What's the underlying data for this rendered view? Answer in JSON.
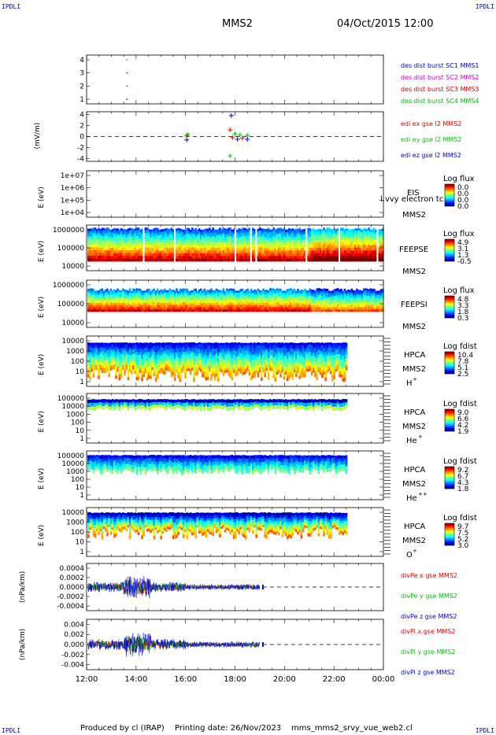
{
  "header": {
    "corner_tl": "IPDLI",
    "corner_tr": "IPDLI",
    "corner_bl": "IPDLI",
    "corner_br": "IPDLI",
    "mission": "MMS2",
    "date": "04/Oct/2015 12:00"
  },
  "footer": {
    "produced_by": "Produced by cl (IRAP)",
    "printing_date": "Printing date: 26/Nov/2023",
    "filename": "mms_mms2_srvy_vue_web2.cl"
  },
  "colors": {
    "mms1": "#0000c8",
    "mms2": "#c800c8",
    "mms3": "#c80000",
    "mms4": "#00b400",
    "x_red": "#e00000",
    "y_green": "#00c000",
    "z_blue": "#0000d0"
  },
  "chart_data": [
    {
      "type": "scatter",
      "title": "",
      "ylabel": "",
      "yticks": [
        "4",
        "3",
        "2",
        "1"
      ],
      "series": [
        {
          "name": "des dist burst SC1 MMS1",
          "x": [
            13.6
          ],
          "y": [
            1
          ]
        },
        {
          "name": "des dist burst SC2 MMS2",
          "x": [
            13.6
          ],
          "y": [
            2
          ]
        },
        {
          "name": "des dist burst SC3 MMS3",
          "x": [
            13.6
          ],
          "y": [
            3
          ]
        },
        {
          "name": "des dist burst SC4 MMS4",
          "x": [
            13.6
          ],
          "y": [
            4
          ]
        }
      ]
    },
    {
      "type": "scatter",
      "ylabel": "(mV/m)",
      "ylim": [
        -4.5,
        4.5
      ],
      "yticks": [
        "4",
        "2",
        "0",
        "-2",
        "-4"
      ],
      "series": [
        {
          "name": "edi ex gse l2 MMS2",
          "x": [
            16.05,
            17.8,
            17.9,
            18.3
          ],
          "y": [
            0.2,
            1.2,
            -0.2,
            -0.3
          ]
        },
        {
          "name": "edi ey gse l2 MMS2",
          "x": [
            16.1,
            17.8,
            18.0,
            18.2,
            18.5
          ],
          "y": [
            0.4,
            -3.5,
            0.5,
            0.3,
            0.2
          ]
        },
        {
          "name": "edi ez gse l2 MMS2",
          "x": [
            16.05,
            17.85,
            18.1,
            18.5
          ],
          "y": [
            -0.6,
            3.8,
            -0.5,
            -0.5
          ]
        }
      ]
    },
    {
      "type": "heatmap",
      "ylabel": "E (eV)",
      "yticks": [
        "1e+07",
        "1e+06",
        "1e+05",
        "1e+04"
      ],
      "label": "EIS",
      "label2": "MMS2",
      "overlay_text": "l.vvy electron tc",
      "colorbar_title": "Log flux",
      "colorbar_ticks": [
        "0.0",
        "0.0",
        "0.0",
        "0.0"
      ],
      "values": []
    },
    {
      "type": "heatmap",
      "ylabel": "E (eV)",
      "yticks": [
        "1000000",
        "100000",
        "10000"
      ],
      "label": "FEEPSE",
      "label2": "MMS2",
      "colorbar_title": "Log flux",
      "colorbar_ticks": [
        "4.9",
        "3.1",
        "1.3",
        "-0.5"
      ],
      "data_end_hour": 24
    },
    {
      "type": "heatmap",
      "ylabel": "E (eV)",
      "yticks": [
        "1000000",
        "100000",
        "10000"
      ],
      "label": "FEEPSI",
      "label2": "MMS2",
      "colorbar_title": "Log flux",
      "colorbar_ticks": [
        "4.8",
        "3.3",
        "1.8",
        "0.3"
      ],
      "data_end_hour": 24
    },
    {
      "type": "heatmap",
      "ylabel": "E (eV)",
      "yticks": [
        "10000",
        "1000",
        "100",
        "10",
        "1"
      ],
      "label": "HPCA",
      "label2": "MMS2",
      "species": "H",
      "species_sup": "+",
      "colorbar_title": "Log fdist",
      "colorbar_ticks": [
        "10.4",
        "7.8",
        "5.1",
        "2.5"
      ],
      "data_end_hour": 22.5
    },
    {
      "type": "heatmap",
      "ylabel": "E (eV)",
      "yticks": [
        "100000",
        "10000",
        "1000",
        "100",
        "10",
        "1"
      ],
      "label": "HPCA",
      "label2": "MMS2",
      "species": "He",
      "species_sup": "+",
      "colorbar_title": "Log fdist",
      "colorbar_ticks": [
        "9.0",
        "6.6",
        "4.2",
        "1.9"
      ],
      "data_end_hour": 22.5
    },
    {
      "type": "heatmap",
      "ylabel": "E (eV)",
      "yticks": [
        "100000",
        "10000",
        "1000",
        "100",
        "10",
        "1"
      ],
      "label": "HPCA",
      "label2": "MMS2",
      "species": "He",
      "species_sup": "++",
      "colorbar_title": "Log fdist",
      "colorbar_ticks": [
        "9.2",
        "6.7",
        "4.3",
        "1.8"
      ],
      "data_end_hour": 22.5
    },
    {
      "type": "heatmap",
      "ylabel": "E (eV)",
      "yticks": [
        "10000",
        "1000",
        "100",
        "10",
        "1"
      ],
      "label": "HPCA",
      "label2": "MMS2",
      "species": "O",
      "species_sup": "+",
      "colorbar_title": "Log fdist",
      "colorbar_ticks": [
        "9.7",
        "7.5",
        "5.2",
        "3.0"
      ],
      "data_end_hour": 22.5
    },
    {
      "type": "line",
      "ylabel": "(nPa/km)",
      "ylim": [
        -0.0005,
        0.0005
      ],
      "yticks": [
        "0.0004",
        "0.0002",
        "0.0000",
        "-0.0002",
        "-0.0004"
      ],
      "data_end_hour": 19.0,
      "series": [
        {
          "name": "divPe x gse MMS2"
        },
        {
          "name": "divPe y gse MMS2"
        },
        {
          "name": "divPe z gse MMS2"
        }
      ]
    },
    {
      "type": "line",
      "ylabel": "(nPa/km)",
      "ylim": [
        -0.005,
        0.005
      ],
      "yticks": [
        "0.004",
        "0.002",
        "0.000",
        "-0.002",
        "-0.004"
      ],
      "data_end_hour": 19.0,
      "series": [
        {
          "name": "divPi x gse MMS2"
        },
        {
          "name": "divPi y gse MMS2"
        },
        {
          "name": "divPi z gse MMS2"
        }
      ]
    }
  ],
  "x_axis": {
    "range_hours": [
      12,
      24
    ],
    "ticks": [
      {
        "hour": 12,
        "label": "12:00"
      },
      {
        "hour": 14,
        "label": "14:00"
      },
      {
        "hour": 16,
        "label": "16:00"
      },
      {
        "hour": 18,
        "label": "18:00"
      },
      {
        "hour": 20,
        "label": "20:00"
      },
      {
        "hour": 22,
        "label": "22:00"
      },
      {
        "hour": 24,
        "label": "00:00"
      }
    ]
  }
}
